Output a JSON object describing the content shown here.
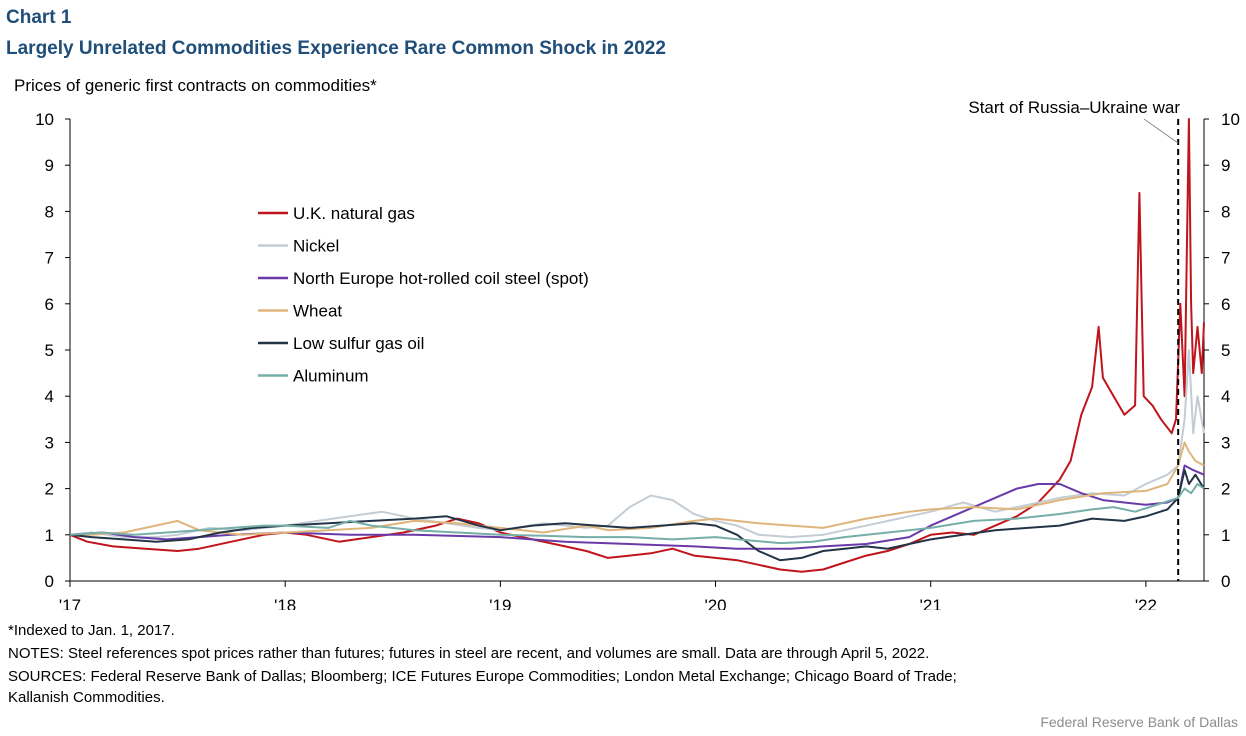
{
  "header": {
    "chart_label": "Chart 1",
    "title": "Largely Unrelated Commodities Experience Rare Common Shock in 2022",
    "subtitle": "Prices of generic first contracts on commodities*"
  },
  "footer": {
    "footnote": "*Indexed to Jan. 1, 2017.",
    "notes": "NOTES: Steel references spot prices rather than futures; futures in steel are recent, and volumes are small. Data are through April 5, 2022.",
    "sources_line1": "SOURCES: Federal Reserve Bank of Dallas; Bloomberg; ICE Futures Europe Commodities; London Metal Exchange; Chicago Board of Trade;",
    "sources_line2": "Kallanish Commodities.",
    "credit": "Federal Reserve Bank of Dallas"
  },
  "chart_data": {
    "type": "line",
    "title": "Largely Unrelated Commodities Experience Rare Common Shock in 2022",
    "ylabel": "Prices of generic first contracts on commodities*",
    "xlabel": "",
    "xlim": [
      2017.0,
      2022.27
    ],
    "ylim": [
      0,
      10
    ],
    "yticks": [
      "0",
      "1",
      "2",
      "3",
      "4",
      "5",
      "6",
      "7",
      "8",
      "9",
      "10"
    ],
    "xticks": [
      {
        "x": 2017,
        "label": "'17"
      },
      {
        "x": 2018,
        "label": "'18"
      },
      {
        "x": 2019,
        "label": "'19"
      },
      {
        "x": 2020,
        "label": "'20"
      },
      {
        "x": 2021,
        "label": "'21"
      },
      {
        "x": 2022,
        "label": "'22"
      }
    ],
    "grid": false,
    "legend_position": "upper-left",
    "annotation": {
      "text": "Start of Russia–Ukraine  war",
      "x": 2022.15
    },
    "series": [
      {
        "name": "U.K. natural gas",
        "color": "#c0141c",
        "points": [
          [
            2017.0,
            1.0
          ],
          [
            2017.08,
            0.85
          ],
          [
            2017.2,
            0.75
          ],
          [
            2017.35,
            0.7
          ],
          [
            2017.5,
            0.65
          ],
          [
            2017.6,
            0.7
          ],
          [
            2017.75,
            0.85
          ],
          [
            2017.9,
            1.0
          ],
          [
            2018.0,
            1.05
          ],
          [
            2018.1,
            1.0
          ],
          [
            2018.25,
            0.85
          ],
          [
            2018.4,
            0.95
          ],
          [
            2018.55,
            1.05
          ],
          [
            2018.7,
            1.2
          ],
          [
            2018.8,
            1.35
          ],
          [
            2018.9,
            1.25
          ],
          [
            2019.0,
            1.05
          ],
          [
            2019.1,
            0.95
          ],
          [
            2019.25,
            0.8
          ],
          [
            2019.4,
            0.65
          ],
          [
            2019.5,
            0.5
          ],
          [
            2019.6,
            0.55
          ],
          [
            2019.7,
            0.6
          ],
          [
            2019.8,
            0.7
          ],
          [
            2019.9,
            0.55
          ],
          [
            2020.0,
            0.5
          ],
          [
            2020.1,
            0.45
          ],
          [
            2020.2,
            0.35
          ],
          [
            2020.3,
            0.25
          ],
          [
            2020.4,
            0.2
          ],
          [
            2020.5,
            0.25
          ],
          [
            2020.6,
            0.4
          ],
          [
            2020.7,
            0.55
          ],
          [
            2020.8,
            0.65
          ],
          [
            2020.9,
            0.8
          ],
          [
            2021.0,
            1.0
          ],
          [
            2021.1,
            1.05
          ],
          [
            2021.2,
            1.0
          ],
          [
            2021.3,
            1.2
          ],
          [
            2021.4,
            1.4
          ],
          [
            2021.5,
            1.7
          ],
          [
            2021.6,
            2.2
          ],
          [
            2021.65,
            2.6
          ],
          [
            2021.7,
            3.6
          ],
          [
            2021.75,
            4.2
          ],
          [
            2021.78,
            5.5
          ],
          [
            2021.8,
            4.4
          ],
          [
            2021.85,
            4.0
          ],
          [
            2021.9,
            3.6
          ],
          [
            2021.95,
            3.8
          ],
          [
            2021.97,
            8.4
          ],
          [
            2021.99,
            4.0
          ],
          [
            2022.03,
            3.8
          ],
          [
            2022.07,
            3.5
          ],
          [
            2022.12,
            3.2
          ],
          [
            2022.14,
            3.5
          ],
          [
            2022.16,
            6.0
          ],
          [
            2022.18,
            4.0
          ],
          [
            2022.2,
            10.0
          ],
          [
            2022.21,
            6.0
          ],
          [
            2022.22,
            4.5
          ],
          [
            2022.24,
            5.5
          ],
          [
            2022.26,
            4.5
          ],
          [
            2022.27,
            5.6
          ]
        ]
      },
      {
        "name": "Nickel",
        "color": "#c4ccd4",
        "points": [
          [
            2017.0,
            1.0
          ],
          [
            2017.1,
            1.05
          ],
          [
            2017.25,
            0.95
          ],
          [
            2017.4,
            0.95
          ],
          [
            2017.5,
            1.0
          ],
          [
            2017.65,
            1.15
          ],
          [
            2017.8,
            1.1
          ],
          [
            2017.9,
            1.15
          ],
          [
            2018.0,
            1.2
          ],
          [
            2018.15,
            1.3
          ],
          [
            2018.3,
            1.4
          ],
          [
            2018.45,
            1.5
          ],
          [
            2018.6,
            1.35
          ],
          [
            2018.75,
            1.25
          ],
          [
            2018.9,
            1.15
          ],
          [
            2019.0,
            1.1
          ],
          [
            2019.2,
            1.25
          ],
          [
            2019.4,
            1.15
          ],
          [
            2019.5,
            1.2
          ],
          [
            2019.6,
            1.6
          ],
          [
            2019.7,
            1.85
          ],
          [
            2019.8,
            1.75
          ],
          [
            2019.9,
            1.45
          ],
          [
            2020.0,
            1.3
          ],
          [
            2020.1,
            1.2
          ],
          [
            2020.2,
            1.0
          ],
          [
            2020.35,
            0.95
          ],
          [
            2020.5,
            1.0
          ],
          [
            2020.6,
            1.1
          ],
          [
            2020.75,
            1.25
          ],
          [
            2020.9,
            1.4
          ],
          [
            2021.0,
            1.5
          ],
          [
            2021.15,
            1.7
          ],
          [
            2021.3,
            1.5
          ],
          [
            2021.45,
            1.65
          ],
          [
            2021.6,
            1.8
          ],
          [
            2021.75,
            1.9
          ],
          [
            2021.9,
            1.85
          ],
          [
            2022.0,
            2.1
          ],
          [
            2022.1,
            2.3
          ],
          [
            2022.15,
            2.5
          ],
          [
            2022.18,
            3.5
          ],
          [
            2022.2,
            5.0
          ],
          [
            2022.22,
            3.2
          ],
          [
            2022.24,
            4.0
          ],
          [
            2022.27,
            3.2
          ]
        ]
      },
      {
        "name": "North Europe hot-rolled coil steel (spot)",
        "color": "#6a3aa8",
        "points": [
          [
            2017.0,
            1.0
          ],
          [
            2017.15,
            1.05
          ],
          [
            2017.3,
            0.95
          ],
          [
            2017.45,
            0.9
          ],
          [
            2017.6,
            0.95
          ],
          [
            2017.75,
            1.0
          ],
          [
            2018.0,
            1.05
          ],
          [
            2018.3,
            1.0
          ],
          [
            2018.6,
            1.0
          ],
          [
            2019.0,
            0.95
          ],
          [
            2019.3,
            0.85
          ],
          [
            2019.6,
            0.8
          ],
          [
            2019.9,
            0.75
          ],
          [
            2020.1,
            0.7
          ],
          [
            2020.35,
            0.7
          ],
          [
            2020.5,
            0.75
          ],
          [
            2020.7,
            0.8
          ],
          [
            2020.9,
            0.95
          ],
          [
            2021.0,
            1.2
          ],
          [
            2021.15,
            1.5
          ],
          [
            2021.3,
            1.8
          ],
          [
            2021.4,
            2.0
          ],
          [
            2021.5,
            2.1
          ],
          [
            2021.6,
            2.1
          ],
          [
            2021.7,
            1.9
          ],
          [
            2021.8,
            1.75
          ],
          [
            2021.9,
            1.7
          ],
          [
            2022.0,
            1.65
          ],
          [
            2022.1,
            1.7
          ],
          [
            2022.15,
            1.8
          ],
          [
            2022.18,
            2.5
          ],
          [
            2022.22,
            2.4
          ],
          [
            2022.27,
            2.3
          ]
        ]
      },
      {
        "name": "Wheat",
        "color": "#e0b57c",
        "points": [
          [
            2017.0,
            1.0
          ],
          [
            2017.1,
            1.0
          ],
          [
            2017.25,
            1.05
          ],
          [
            2017.35,
            1.15
          ],
          [
            2017.5,
            1.3
          ],
          [
            2017.6,
            1.1
          ],
          [
            2017.8,
            1.0
          ],
          [
            2018.0,
            1.05
          ],
          [
            2018.2,
            1.1
          ],
          [
            2018.4,
            1.15
          ],
          [
            2018.6,
            1.3
          ],
          [
            2018.8,
            1.25
          ],
          [
            2019.0,
            1.15
          ],
          [
            2019.2,
            1.05
          ],
          [
            2019.4,
            1.2
          ],
          [
            2019.5,
            1.1
          ],
          [
            2019.7,
            1.15
          ],
          [
            2019.9,
            1.3
          ],
          [
            2020.0,
            1.35
          ],
          [
            2020.2,
            1.25
          ],
          [
            2020.35,
            1.2
          ],
          [
            2020.5,
            1.15
          ],
          [
            2020.7,
            1.35
          ],
          [
            2020.9,
            1.5
          ],
          [
            2021.0,
            1.55
          ],
          [
            2021.2,
            1.6
          ],
          [
            2021.4,
            1.55
          ],
          [
            2021.6,
            1.75
          ],
          [
            2021.8,
            1.9
          ],
          [
            2022.0,
            1.95
          ],
          [
            2022.1,
            2.1
          ],
          [
            2022.15,
            2.5
          ],
          [
            2022.18,
            3.0
          ],
          [
            2022.2,
            2.8
          ],
          [
            2022.23,
            2.6
          ],
          [
            2022.27,
            2.5
          ]
        ]
      },
      {
        "name": "Low sulfur gas oil",
        "color": "#243447",
        "points": [
          [
            2017.0,
            1.0
          ],
          [
            2017.1,
            0.95
          ],
          [
            2017.25,
            0.9
          ],
          [
            2017.4,
            0.85
          ],
          [
            2017.55,
            0.9
          ],
          [
            2017.7,
            1.05
          ],
          [
            2017.85,
            1.15
          ],
          [
            2018.0,
            1.2
          ],
          [
            2018.2,
            1.25
          ],
          [
            2018.4,
            1.3
          ],
          [
            2018.6,
            1.35
          ],
          [
            2018.75,
            1.4
          ],
          [
            2018.9,
            1.2
          ],
          [
            2019.0,
            1.1
          ],
          [
            2019.15,
            1.2
          ],
          [
            2019.3,
            1.25
          ],
          [
            2019.45,
            1.2
          ],
          [
            2019.6,
            1.15
          ],
          [
            2019.75,
            1.2
          ],
          [
            2019.9,
            1.25
          ],
          [
            2020.0,
            1.2
          ],
          [
            2020.1,
            1.0
          ],
          [
            2020.2,
            0.65
          ],
          [
            2020.3,
            0.45
          ],
          [
            2020.4,
            0.5
          ],
          [
            2020.5,
            0.65
          ],
          [
            2020.6,
            0.7
          ],
          [
            2020.7,
            0.75
          ],
          [
            2020.8,
            0.7
          ],
          [
            2020.9,
            0.8
          ],
          [
            2021.0,
            0.9
          ],
          [
            2021.15,
            1.0
          ],
          [
            2021.3,
            1.1
          ],
          [
            2021.45,
            1.15
          ],
          [
            2021.6,
            1.2
          ],
          [
            2021.75,
            1.35
          ],
          [
            2021.9,
            1.3
          ],
          [
            2022.0,
            1.4
          ],
          [
            2022.1,
            1.55
          ],
          [
            2022.15,
            1.8
          ],
          [
            2022.18,
            2.4
          ],
          [
            2022.2,
            2.1
          ],
          [
            2022.23,
            2.3
          ],
          [
            2022.27,
            2.0
          ]
        ]
      },
      {
        "name": "Aluminum",
        "color": "#76aea8",
        "points": [
          [
            2017.0,
            1.0
          ],
          [
            2017.15,
            1.05
          ],
          [
            2017.3,
            1.0
          ],
          [
            2017.45,
            1.05
          ],
          [
            2017.6,
            1.1
          ],
          [
            2017.75,
            1.15
          ],
          [
            2017.9,
            1.2
          ],
          [
            2018.0,
            1.2
          ],
          [
            2018.2,
            1.15
          ],
          [
            2018.3,
            1.3
          ],
          [
            2018.4,
            1.2
          ],
          [
            2018.6,
            1.1
          ],
          [
            2018.8,
            1.05
          ],
          [
            2019.0,
            1.0
          ],
          [
            2019.2,
            0.98
          ],
          [
            2019.4,
            0.95
          ],
          [
            2019.6,
            0.95
          ],
          [
            2019.8,
            0.9
          ],
          [
            2020.0,
            0.95
          ],
          [
            2020.15,
            0.88
          ],
          [
            2020.3,
            0.82
          ],
          [
            2020.45,
            0.85
          ],
          [
            2020.6,
            0.95
          ],
          [
            2020.8,
            1.05
          ],
          [
            2020.9,
            1.1
          ],
          [
            2021.0,
            1.15
          ],
          [
            2021.2,
            1.3
          ],
          [
            2021.4,
            1.35
          ],
          [
            2021.6,
            1.45
          ],
          [
            2021.75,
            1.55
          ],
          [
            2021.85,
            1.6
          ],
          [
            2021.95,
            1.5
          ],
          [
            2022.05,
            1.65
          ],
          [
            2022.15,
            1.8
          ],
          [
            2022.18,
            2.0
          ],
          [
            2022.21,
            1.9
          ],
          [
            2022.24,
            2.1
          ],
          [
            2022.27,
            2.0
          ]
        ]
      }
    ]
  }
}
